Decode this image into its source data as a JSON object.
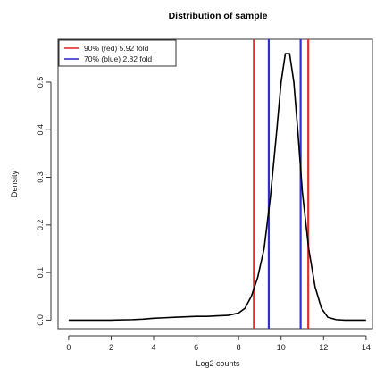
{
  "chart_data": {
    "type": "line",
    "title": "Distribution of sample",
    "xlabel": "Log2 counts",
    "ylabel": "Density",
    "xlim": [
      -0.5,
      14.3
    ],
    "ylim": [
      -0.018,
      0.59
    ],
    "x_ticks": [
      0,
      2,
      4,
      6,
      8,
      10,
      12,
      14
    ],
    "x_tick_labels": [
      "0",
      "2",
      "4",
      "6",
      "8",
      "10",
      "12",
      "14"
    ],
    "y_ticks": [
      0.0,
      0.1,
      0.2,
      0.3,
      0.4,
      0.5
    ],
    "y_tick_labels": [
      "0.0",
      "0.1",
      "0.2",
      "0.3",
      "0.4",
      "0.5"
    ],
    "grid": false,
    "legend_position": "top-left",
    "series": [
      {
        "color": "#000000",
        "x": [
          0,
          1,
          2,
          3,
          3.5,
          4,
          4.5,
          5,
          5.5,
          6,
          6.5,
          7,
          7.5,
          8,
          8.3,
          8.6,
          8.9,
          9.2,
          9.5,
          9.8,
          10.0,
          10.2,
          10.4,
          10.6,
          10.8,
          11.0,
          11.3,
          11.6,
          11.9,
          12.2,
          12.6,
          13,
          14
        ],
        "y": [
          0,
          0,
          0,
          0.001,
          0.002,
          0.004,
          0.005,
          0.006,
          0.007,
          0.008,
          0.008,
          0.009,
          0.01,
          0.015,
          0.025,
          0.05,
          0.09,
          0.15,
          0.26,
          0.4,
          0.5,
          0.56,
          0.56,
          0.5,
          0.39,
          0.27,
          0.15,
          0.07,
          0.025,
          0.006,
          0.001,
          0,
          0
        ]
      }
    ],
    "vertical_lines": [
      {
        "x": 8.72,
        "color": "#e03030"
      },
      {
        "x": 11.28,
        "color": "#e03030"
      },
      {
        "x": 9.42,
        "color": "#3030d0"
      },
      {
        "x": 10.92,
        "color": "#3030d0"
      }
    ],
    "legend": [
      {
        "label": "90% (red)  5.92 fold",
        "color": "#e03030"
      },
      {
        "label": "70% (blue) 2.82 fold",
        "color": "#3030d0"
      }
    ]
  }
}
